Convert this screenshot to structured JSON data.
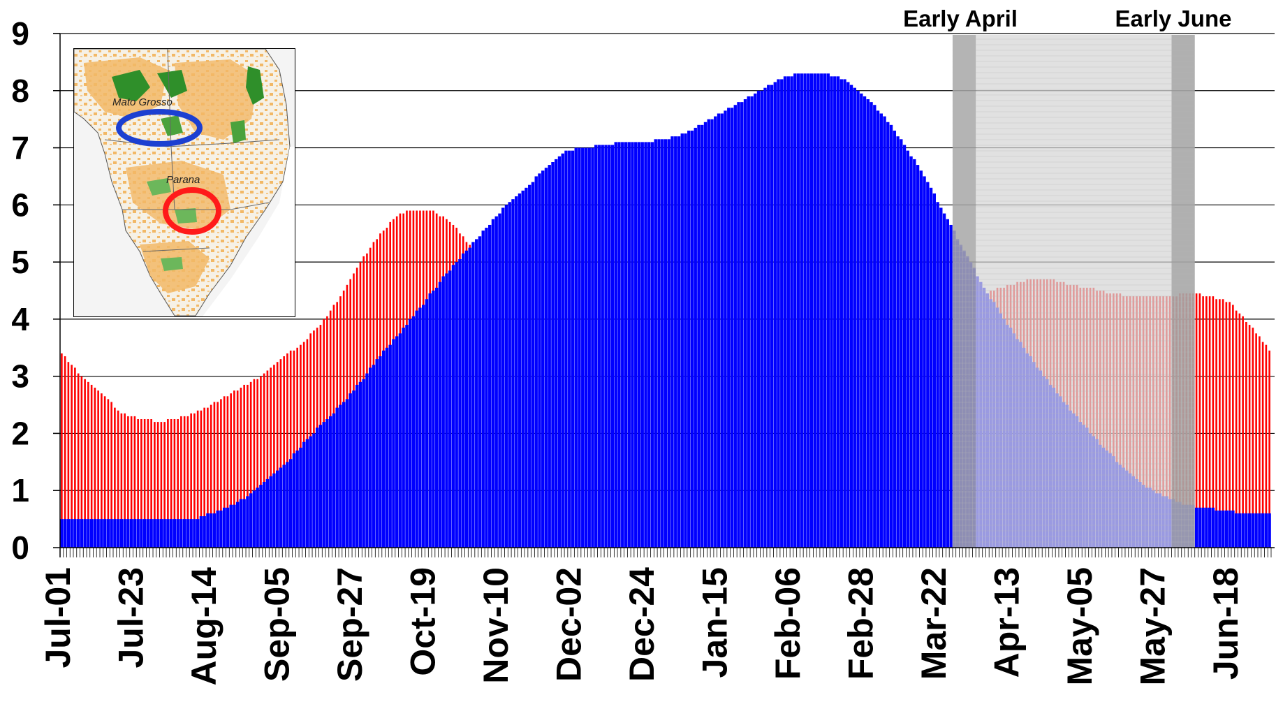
{
  "chart_data": {
    "type": "bar",
    "title": "",
    "xlabel": "",
    "ylabel": "",
    "ylim": [
      0,
      9
    ],
    "yticks": [
      0,
      1,
      2,
      3,
      4,
      5,
      6,
      7,
      8,
      9
    ],
    "grid": "horizontal",
    "x_tick_labels": [
      "Jul-01",
      "Jul-23",
      "Aug-14",
      "Sep-05",
      "Sep-27",
      "Oct-19",
      "Nov-10",
      "Dec-02",
      "Dec-24",
      "Jan-15",
      "Feb-06",
      "Feb-28",
      "Mar-22",
      "Apr-13",
      "May-05",
      "May-27",
      "Jun-18"
    ],
    "tick_spacing_days": 22,
    "x_start": "Jul-01",
    "x_end": "Jun-30",
    "series": [
      {
        "color": "#ff0000",
        "keypoints": [
          [
            "Jul-01",
            3.4
          ],
          [
            "Jul-07",
            3.0
          ],
          [
            "Jul-13",
            2.7
          ],
          [
            "Jul-19",
            2.35
          ],
          [
            "Jul-25",
            2.25
          ],
          [
            "Jul-31",
            2.2
          ],
          [
            "Aug-06",
            2.28
          ],
          [
            "Aug-12",
            2.4
          ],
          [
            "Aug-18",
            2.6
          ],
          [
            "Aug-24",
            2.8
          ],
          [
            "Aug-30",
            3.0
          ],
          [
            "Sep-05",
            3.3
          ],
          [
            "Sep-11",
            3.55
          ],
          [
            "Sep-17",
            3.9
          ],
          [
            "Sep-23",
            4.4
          ],
          [
            "Sep-29",
            5.0
          ],
          [
            "Oct-05",
            5.5
          ],
          [
            "Oct-11",
            5.85
          ],
          [
            "Oct-15",
            5.9
          ],
          [
            "Oct-21",
            5.9
          ],
          [
            "Oct-27",
            5.65
          ],
          [
            "Nov-02",
            5.2
          ],
          [
            "Nov-08",
            4.8
          ],
          [
            "Nov-14",
            4.5
          ],
          [
            "Nov-20",
            4.4
          ],
          [
            "Nov-26",
            4.4
          ],
          [
            "Dec-02",
            4.9
          ],
          [
            "Dec-08",
            5.5
          ],
          [
            "Dec-14",
            5.8
          ],
          [
            "Dec-20",
            6.1
          ],
          [
            "Dec-26",
            6.15
          ],
          [
            "Jan-01",
            6.0
          ],
          [
            "Jan-07",
            5.8
          ],
          [
            "Jan-13",
            5.5
          ],
          [
            "Jan-19",
            5.4
          ],
          [
            "Jan-25",
            5.5
          ],
          [
            "Jan-31",
            5.8
          ],
          [
            "Feb-06",
            6.0
          ],
          [
            "Feb-12",
            6.05
          ],
          [
            "Feb-18",
            6.0
          ],
          [
            "Feb-24",
            5.4
          ],
          [
            "Mar-02",
            4.8
          ],
          [
            "Mar-08",
            4.3
          ],
          [
            "Mar-14",
            3.9
          ],
          [
            "Mar-20",
            3.85
          ],
          [
            "Mar-26",
            3.85
          ],
          [
            "Apr-01",
            4.2
          ],
          [
            "Apr-07",
            4.5
          ],
          [
            "Apr-13",
            4.6
          ],
          [
            "Apr-19",
            4.7
          ],
          [
            "Apr-25",
            4.7
          ],
          [
            "May-01",
            4.6
          ],
          [
            "May-07",
            4.55
          ],
          [
            "May-13",
            4.45
          ],
          [
            "May-19",
            4.4
          ],
          [
            "May-25",
            4.4
          ],
          [
            "May-31",
            4.4
          ],
          [
            "Jun-06",
            4.45
          ],
          [
            "Jun-12",
            4.4
          ],
          [
            "Jun-18",
            4.3
          ],
          [
            "Jun-24",
            3.9
          ],
          [
            "Jun-30",
            3.45
          ]
        ]
      },
      {
        "color": "#0000ff",
        "keypoints": [
          [
            "Jul-01",
            0.5
          ],
          [
            "Jul-15",
            0.5
          ],
          [
            "Aug-05",
            0.5
          ],
          [
            "Aug-10",
            0.5
          ],
          [
            "Aug-15",
            0.6
          ],
          [
            "Aug-20",
            0.7
          ],
          [
            "Aug-26",
            0.9
          ],
          [
            "Sep-01",
            1.2
          ],
          [
            "Sep-07",
            1.5
          ],
          [
            "Sep-13",
            1.9
          ],
          [
            "Sep-19",
            2.25
          ],
          [
            "Sep-25",
            2.6
          ],
          [
            "Oct-01",
            3.05
          ],
          [
            "Oct-07",
            3.5
          ],
          [
            "Oct-13",
            3.9
          ],
          [
            "Oct-19",
            4.35
          ],
          [
            "Oct-25",
            4.8
          ],
          [
            "Oct-31",
            5.2
          ],
          [
            "Nov-06",
            5.6
          ],
          [
            "Nov-12",
            6.0
          ],
          [
            "Nov-18",
            6.3
          ],
          [
            "Nov-24",
            6.65
          ],
          [
            "Nov-30",
            6.95
          ],
          [
            "Dec-06",
            7.0
          ],
          [
            "Dec-12",
            7.05
          ],
          [
            "Dec-18",
            7.1
          ],
          [
            "Dec-24",
            7.1
          ],
          [
            "Dec-30",
            7.15
          ],
          [
            "Jan-05",
            7.25
          ],
          [
            "Jan-11",
            7.45
          ],
          [
            "Jan-17",
            7.65
          ],
          [
            "Jan-23",
            7.85
          ],
          [
            "Jan-29",
            8.05
          ],
          [
            "Feb-04",
            8.25
          ],
          [
            "Feb-10",
            8.3
          ],
          [
            "Feb-16",
            8.3
          ],
          [
            "Feb-22",
            8.2
          ],
          [
            "Feb-28",
            7.9
          ],
          [
            "Mar-06",
            7.55
          ],
          [
            "Mar-12",
            7.05
          ],
          [
            "Mar-18",
            6.5
          ],
          [
            "Mar-24",
            5.85
          ],
          [
            "Mar-30",
            5.2
          ],
          [
            "Apr-05",
            4.55
          ],
          [
            "Apr-11",
            4.0
          ],
          [
            "Apr-17",
            3.5
          ],
          [
            "Apr-23",
            3.0
          ],
          [
            "Apr-29",
            2.55
          ],
          [
            "May-05",
            2.15
          ],
          [
            "May-11",
            1.75
          ],
          [
            "May-17",
            1.4
          ],
          [
            "May-23",
            1.1
          ],
          [
            "May-29",
            0.9
          ],
          [
            "Jun-04",
            0.75
          ],
          [
            "Jun-10",
            0.7
          ],
          [
            "Jun-16",
            0.65
          ],
          [
            "Jun-22",
            0.6
          ],
          [
            "Jun-30",
            0.6
          ]
        ]
      }
    ],
    "annotations": [
      {
        "label": "Early April",
        "start": "Mar-27",
        "end": "Apr-03"
      },
      {
        "label": "Early June",
        "start": "Jun-01",
        "end": "Jun-08"
      }
    ],
    "inset_map": {
      "labels": [
        "Mato Grosso",
        "Parana"
      ],
      "circle_colors": [
        "#1c3fd1",
        "#ff1a1a"
      ]
    },
    "colors": {
      "grid": "#000000",
      "shade_light": "#d6d6d6",
      "shade_dark": "#a7a7a7",
      "map_land": "#f0f0f0",
      "map_crop_orange": "#f2b866",
      "map_crop_green": "#2f8f2a"
    }
  }
}
